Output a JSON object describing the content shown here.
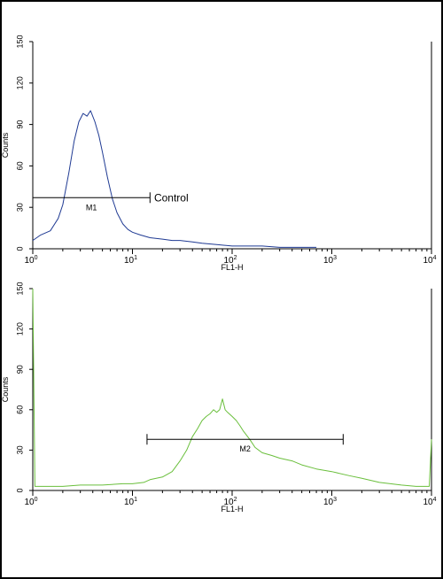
{
  "chart_data": [
    {
      "type": "line",
      "xlabel": "FL1-H",
      "ylabel": "Counts",
      "x_scale": "log",
      "xlim": [
        1,
        10000
      ],
      "ylim": [
        0,
        150
      ],
      "x_ticks": [
        {
          "value": 1,
          "base": "10",
          "exp": "0"
        },
        {
          "value": 10,
          "base": "10",
          "exp": "1"
        },
        {
          "value": 100,
          "base": "10",
          "exp": "2"
        },
        {
          "value": 1000,
          "base": "10",
          "exp": "3"
        },
        {
          "value": 10000,
          "base": "10",
          "exp": "4"
        }
      ],
      "y_ticks": [
        "0",
        "30",
        "60",
        "90",
        "120",
        "150"
      ],
      "series": [
        {
          "color": "#1f3a93",
          "points": [
            [
              1.0,
              6
            ],
            [
              1.2,
              10
            ],
            [
              1.5,
              13
            ],
            [
              1.8,
              22
            ],
            [
              2.0,
              32
            ],
            [
              2.3,
              55
            ],
            [
              2.6,
              78
            ],
            [
              2.9,
              92
            ],
            [
              3.2,
              98
            ],
            [
              3.5,
              96
            ],
            [
              3.8,
              100
            ],
            [
              4.2,
              92
            ],
            [
              4.6,
              82
            ],
            [
              5.0,
              70
            ],
            [
              5.6,
              52
            ],
            [
              6.3,
              36
            ],
            [
              7.0,
              26
            ],
            [
              8.0,
              18
            ],
            [
              9.0,
              14
            ],
            [
              10,
              12
            ],
            [
              12,
              10
            ],
            [
              15,
              8
            ],
            [
              20,
              7
            ],
            [
              25,
              6
            ],
            [
              30,
              6
            ],
            [
              40,
              5
            ],
            [
              50,
              4
            ],
            [
              70,
              3
            ],
            [
              100,
              2
            ],
            [
              150,
              2
            ],
            [
              200,
              2
            ],
            [
              300,
              1
            ],
            [
              500,
              1
            ],
            [
              700,
              1
            ]
          ]
        }
      ],
      "annotations": [
        {
          "type": "marker",
          "label": "M1",
          "x_start": 1,
          "x_end": 15,
          "y": 37
        },
        {
          "type": "text",
          "text": "Control",
          "x": 16.5,
          "y": 37
        }
      ]
    },
    {
      "type": "line",
      "xlabel": "FL1-H",
      "ylabel": "Counts",
      "x_scale": "log",
      "xlim": [
        1,
        10000
      ],
      "ylim": [
        0,
        150
      ],
      "x_ticks": [
        {
          "value": 1,
          "base": "10",
          "exp": "0"
        },
        {
          "value": 10,
          "base": "10",
          "exp": "1"
        },
        {
          "value": 100,
          "base": "10",
          "exp": "2"
        },
        {
          "value": 1000,
          "base": "10",
          "exp": "3"
        },
        {
          "value": 10000,
          "base": "10",
          "exp": "4"
        }
      ],
      "y_ticks": [
        "0",
        "30",
        "60",
        "90",
        "120",
        "150"
      ],
      "series": [
        {
          "color": "#6abf3c",
          "points": [
            [
              1.0,
              150
            ],
            [
              1.05,
              3
            ],
            [
              1.5,
              3
            ],
            [
              2,
              3
            ],
            [
              3,
              4
            ],
            [
              5,
              4
            ],
            [
              8,
              5
            ],
            [
              10,
              5
            ],
            [
              13,
              6
            ],
            [
              15,
              8
            ],
            [
              20,
              10
            ],
            [
              25,
              14
            ],
            [
              30,
              22
            ],
            [
              35,
              30
            ],
            [
              40,
              40
            ],
            [
              45,
              46
            ],
            [
              50,
              52
            ],
            [
              55,
              55
            ],
            [
              60,
              57
            ],
            [
              65,
              60
            ],
            [
              70,
              58
            ],
            [
              75,
              60
            ],
            [
              80,
              68
            ],
            [
              85,
              60
            ],
            [
              90,
              58
            ],
            [
              100,
              55
            ],
            [
              110,
              52
            ],
            [
              120,
              48
            ],
            [
              130,
              44
            ],
            [
              150,
              38
            ],
            [
              170,
              32
            ],
            [
              200,
              28
            ],
            [
              250,
              26
            ],
            [
              300,
              24
            ],
            [
              400,
              22
            ],
            [
              500,
              19
            ],
            [
              700,
              16
            ],
            [
              1000,
              14
            ],
            [
              1500,
              11
            ],
            [
              2000,
              9
            ],
            [
              3000,
              6
            ],
            [
              5000,
              4
            ],
            [
              7000,
              3
            ],
            [
              9500,
              3
            ],
            [
              10000,
              38
            ]
          ]
        }
      ],
      "annotations": [
        {
          "type": "marker",
          "label": "M2",
          "x_start": 14,
          "x_end": 1300,
          "y": 38
        }
      ]
    }
  ]
}
